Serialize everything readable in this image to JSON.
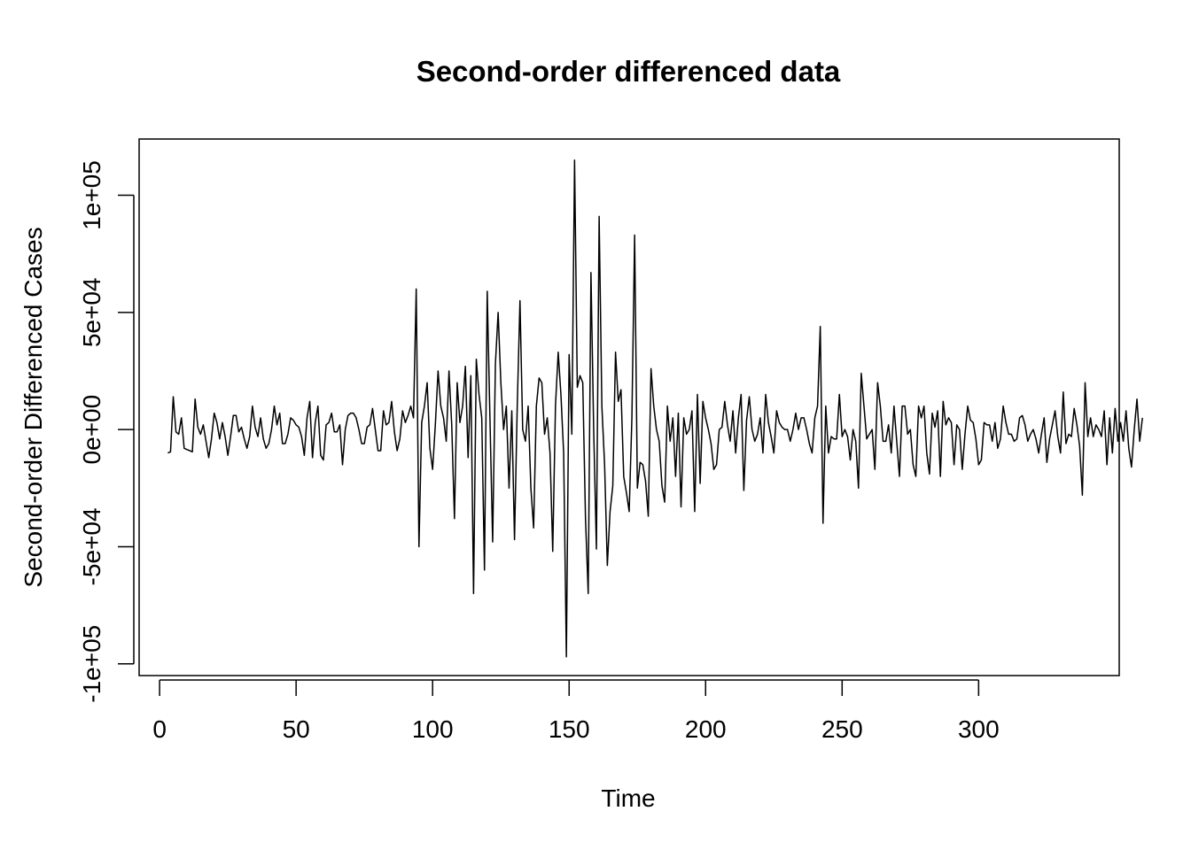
{
  "chart_data": {
    "type": "line",
    "title": "Second-order differenced data",
    "xlabel": "Time",
    "ylabel": "Second-order Differenced Cases",
    "xlim": [
      -7.5,
      351.5
    ],
    "ylim": [
      -105000,
      124000
    ],
    "xticks": [
      0,
      50,
      100,
      150,
      200,
      250,
      300
    ],
    "xtick_labels": [
      "0",
      "50",
      "100",
      "150",
      "200",
      "250",
      "300"
    ],
    "yticks": [
      -100000,
      -50000,
      0,
      50000,
      100000
    ],
    "ytick_labels": [
      "-1e+05",
      "-5e+04",
      "0e+00",
      "5e+04",
      "1e+05"
    ],
    "grid": false,
    "legend": "none",
    "line_color": "#000000",
    "series": [
      {
        "x_start": 3,
        "x_step": 1,
        "values": [
          -10000,
          -9500,
          14000,
          -1000,
          -2000,
          5000,
          -8000,
          -8500,
          -9000,
          -9500,
          13000,
          1000,
          -2000,
          2000,
          -5000,
          -12000,
          -4000,
          7000,
          3000,
          -4000,
          3000,
          -3000,
          -11000,
          -3000,
          6000,
          6000,
          -1000,
          1000,
          -4000,
          -8000,
          -3000,
          10000,
          1000,
          -3000,
          5000,
          -4000,
          -8000,
          -6000,
          0,
          10000,
          2000,
          7000,
          -6000,
          -6000,
          -2000,
          5000,
          4000,
          2000,
          1000,
          -3000,
          -11000,
          5000,
          12000,
          -12000,
          3000,
          10000,
          -11000,
          -13000,
          2000,
          3000,
          7000,
          -1000,
          -1000,
          2000,
          -15000,
          0,
          6000,
          7000,
          7000,
          5000,
          0,
          -6000,
          -6000,
          1000,
          2000,
          9000,
          0,
          -9000,
          -9000,
          8000,
          2000,
          3000,
          12000,
          -1000,
          -9000,
          -4000,
          8000,
          3000,
          6000,
          10000,
          5000,
          60000,
          -50000,
          3000,
          10000,
          20000,
          -8000,
          -17000,
          2000,
          25000,
          10000,
          5000,
          -5000,
          25000,
          2000,
          -38000,
          20000,
          3000,
          10000,
          27000,
          -12000,
          23000,
          -70000,
          30000,
          15000,
          5000,
          -60000,
          59000,
          5000,
          -48000,
          28000,
          50000,
          20000,
          0,
          10000,
          -25000,
          8000,
          -47000,
          10000,
          55000,
          0,
          -5000,
          10000,
          -25000,
          -42000,
          10000,
          22000,
          20000,
          -2000,
          5000,
          -10000,
          -52000,
          10000,
          33000,
          15000,
          -10000,
          -97000,
          32000,
          -2000,
          115000,
          18000,
          23000,
          20000,
          -38000,
          -70000,
          67000,
          0,
          -51000,
          91000,
          10000,
          -15000,
          -58000,
          -35000,
          -24000,
          33000,
          12000,
          17000,
          -20000,
          -27000,
          -35000,
          5000,
          83000,
          -25000,
          -14000,
          -15000,
          -22000,
          -37000,
          26000,
          10000,
          0,
          -5000,
          -24000,
          -31000,
          10000,
          -5000,
          5000,
          -20000,
          7000,
          -33000,
          5000,
          -2000,
          0,
          8000,
          -35000,
          15000,
          -23000,
          12000,
          5000,
          0,
          -6000,
          -17000,
          -15000,
          0,
          1000,
          12000,
          2000,
          -5000,
          8000,
          -10000,
          5000,
          15000,
          -26000,
          4000,
          14000,
          0,
          -5000,
          -2000,
          5000,
          -10000,
          15000,
          3000,
          -3000,
          -10000,
          8000,
          3000,
          1000,
          0,
          0,
          -5000,
          0,
          7000,
          0,
          5000,
          5000,
          0,
          -6000,
          -10000,
          5000,
          10000,
          44000,
          -40000,
          10000,
          -10000,
          -3000,
          -4000,
          -4000,
          15000,
          -3000,
          0,
          -3000,
          -13000,
          0,
          -5000,
          -25000,
          24000,
          10000,
          -4000,
          -2000,
          0,
          -17000,
          20000,
          10000,
          -5000,
          -5000,
          2000,
          -10000,
          10000,
          -5000,
          -20000,
          10000,
          10000,
          -2000,
          0,
          -15000,
          -20000,
          10000,
          5000,
          10000,
          -10000,
          -19000,
          7000,
          1000,
          8000,
          -20000,
          12000,
          2000,
          5000,
          3000,
          -15000,
          2000,
          0,
          -17000,
          -2000,
          10000,
          4000,
          3000,
          -4000,
          -15000,
          -13000,
          3000,
          2000,
          2000,
          -5000,
          3000,
          -8000,
          -4000,
          10000,
          3000,
          -2000,
          -2000,
          -5000,
          -4000,
          5000,
          6000,
          2000,
          -5000,
          -2000,
          0,
          -4000,
          -10000,
          -2000,
          5000,
          -14000,
          -4000,
          2000,
          8000,
          -3000,
          -10000,
          16000,
          -6000,
          -2000,
          -3000,
          9000,
          2000,
          -7000,
          -28000,
          20000,
          -3000,
          5000,
          -3000,
          2000,
          0,
          -3000,
          8000,
          -15000,
          5000,
          -10000,
          9000,
          -5000,
          3000,
          -5000,
          8000,
          -8000,
          -16000,
          0,
          13000,
          -5000,
          5000
        ]
      }
    ]
  }
}
